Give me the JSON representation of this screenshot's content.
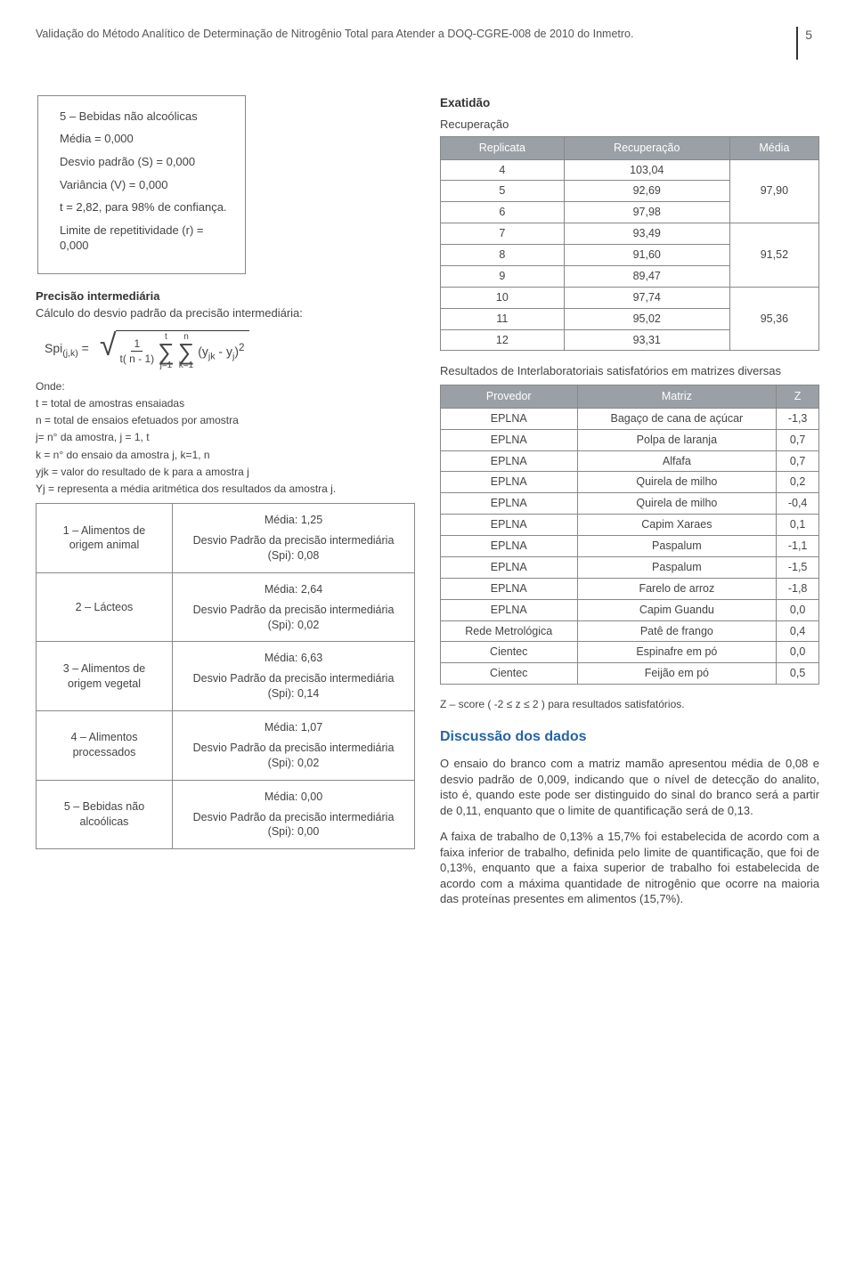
{
  "header": {
    "title": "Validação do Método Analítico de Determinação de Nitrogênio Total para Atender a DOQ-CGRE-008 de 2010 do Inmetro.",
    "page_number": "5"
  },
  "left_box": {
    "section_label": "5 – Bebidas não alcoólicas",
    "media": "Média = 0,000",
    "desvio": "Desvio padrão (S) = 0,000",
    "variancia": "Variância (V) = 0,000",
    "t_conf": "t = 2,82, para 98% de confiança.",
    "limite": "Limite de repetitividade (r) = 0,000"
  },
  "precisao": {
    "heading": "Precisão intermediária",
    "line": "Cálculo do desvio padrão da precisão intermediária:",
    "formula": {
      "lhs": "Spi",
      "lhs_sub": "(j,k)",
      "equals": "=",
      "frac_num": "1",
      "frac_den": "t( n - 1)",
      "sum1_top": "t",
      "sum1_bot": "j=1",
      "sum2_top": "n",
      "sum2_bot": "k=1",
      "term": "(y",
      "term_sub": "jk",
      "term_mid": " - y",
      "term_sub2": "j",
      "term_end": ")",
      "sq": "2"
    },
    "defs": [
      "Onde:",
      "t = total de amostras ensaiadas",
      "n = total de ensaios efetuados por amostra",
      "j= n° da amostra, j = 1, t",
      "k = n° do ensaio da amostra j, k=1, n",
      "yjk = valor do resultado de k para a amostra j",
      "Yj = representa a média aritmética dos resultados da amostra j."
    ]
  },
  "res_table": {
    "rows": [
      {
        "label": "1 – Alimentos de origem animal",
        "media": "Média: 1,25",
        "dp": "Desvio Padrão da precisão intermediária (Spi): 0,08"
      },
      {
        "label": "2 – Lácteos",
        "media": "Média: 2,64",
        "dp": "Desvio Padrão da precisão intermediária (Spi): 0,02"
      },
      {
        "label": "3 – Alimentos de origem vegetal",
        "media": "Média: 6,63",
        "dp": "Desvio Padrão da precisão intermediária (Spi): 0,14"
      },
      {
        "label": "4 – Alimentos processados",
        "media": "Média: 1,07",
        "dp": "Desvio Padrão da precisão intermediária (Spi): 0,02"
      },
      {
        "label": "5 – Bebidas não alcoólicas",
        "media": "Média: 0,00",
        "dp": "Desvio Padrão da precisão intermediária (Spi): 0,00"
      }
    ]
  },
  "exatidao": {
    "heading": "Exatidão",
    "sub": "Recuperação",
    "table": {
      "cols": [
        "Replicata",
        "Recuperação",
        "Média"
      ],
      "groups": [
        {
          "rows": [
            [
              "4",
              "103,04"
            ],
            [
              "5",
              "92,69"
            ],
            [
              "6",
              "97,98"
            ]
          ],
          "media": "97,90"
        },
        {
          "rows": [
            [
              "7",
              "93,49"
            ],
            [
              "8",
              "91,60"
            ],
            [
              "9",
              "89,47"
            ]
          ],
          "media": "91,52"
        },
        {
          "rows": [
            [
              "10",
              "97,74"
            ],
            [
              "11",
              "95,02"
            ],
            [
              "12",
              "93,31"
            ]
          ],
          "media": "95,36"
        }
      ]
    }
  },
  "interlab": {
    "intro": "Resultados de Interlaboratoriais satisfatórios em matrizes diversas",
    "cols": [
      "Provedor",
      "Matriz",
      "Z"
    ],
    "rows": [
      [
        "EPLNA",
        "Bagaço de cana de açúcar",
        "-1,3"
      ],
      [
        "EPLNA",
        "Polpa de laranja",
        "0,7"
      ],
      [
        "EPLNA",
        "Alfafa",
        "0,7"
      ],
      [
        "EPLNA",
        "Quirela de milho",
        "0,2"
      ],
      [
        "EPLNA",
        "Quirela de milho",
        "-0,4"
      ],
      [
        "EPLNA",
        "Capim Xaraes",
        "0,1"
      ],
      [
        "EPLNA",
        "Paspalum",
        "-1,1"
      ],
      [
        "EPLNA",
        "Paspalum",
        "-1,5"
      ],
      [
        "EPLNA",
        "Farelo de arroz",
        "-1,8"
      ],
      [
        "EPLNA",
        "Capim Guandu",
        "0,0"
      ],
      [
        "Rede Metrológica",
        "Patê de frango",
        "0,4"
      ],
      [
        "Cientec",
        "Espinafre em pó",
        "0,0"
      ],
      [
        "Cientec",
        "Feijão em pó",
        "0,5"
      ]
    ],
    "footnote": "Z – score ( -2 ≤ z ≤ 2 ) para resultados satisfatórios."
  },
  "discussion": {
    "heading": "Discussão dos dados",
    "p1": "O ensaio do branco com a matriz mamão apresentou média de 0,08 e desvio padrão de 0,009, indicando que o nível de detecção do analito, isto é, quando este pode ser distinguido do sinal do branco será a partir de 0,11, enquanto que o limite de quantificação será de 0,13.",
    "p2": "A faixa de trabalho de 0,13% a 15,7% foi estabelecida de acordo com a faixa inferior de trabalho, definida pelo limite de quantificação, que foi de 0,13%, enquanto que a faixa superior de trabalho foi estabelecida de acordo com a máxima quantidade de nitrogênio que ocorre na maioria das proteínas presentes em alimentos (15,7%)."
  },
  "styles": {
    "header_gray_bg": "#9aa0a6",
    "header_text_color": "#ffffff",
    "border_color": "#888888",
    "blue_heading": "#2463a5"
  }
}
